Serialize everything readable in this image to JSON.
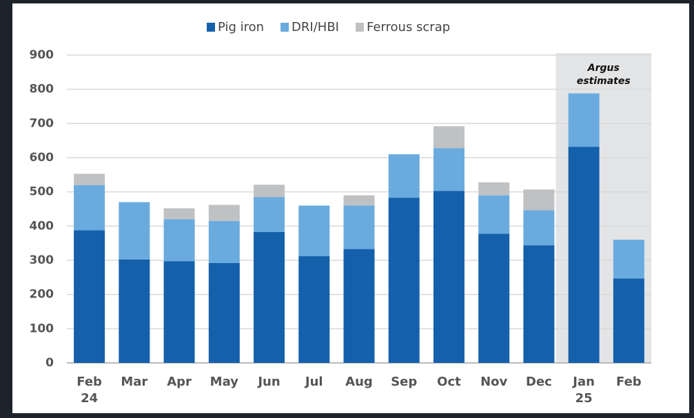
{
  "chart_data": {
    "type": "bar",
    "stacked": true,
    "categories": [
      "Feb 24",
      "Mar",
      "Apr",
      "May",
      "Jun",
      "Jul",
      "Aug",
      "Sep",
      "Oct",
      "Nov",
      "Dec",
      "Jan 25",
      "Feb"
    ],
    "series": [
      {
        "name": "Pig iron",
        "color": "#1560ab",
        "values": [
          388,
          302,
          297,
          292,
          383,
          312,
          333,
          483,
          503,
          378,
          344,
          632,
          247
        ]
      },
      {
        "name": "DRI/HBI",
        "color": "#6aabdf",
        "values": [
          132,
          168,
          123,
          123,
          102,
          148,
          127,
          127,
          125,
          112,
          102,
          156,
          113
        ]
      },
      {
        "name": "Ferrous scrap",
        "color": "#bfc1c3",
        "values": [
          33,
          0,
          32,
          47,
          36,
          0,
          30,
          0,
          64,
          38,
          61,
          0,
          0
        ]
      }
    ],
    "ylim": [
      0,
      900
    ],
    "yticks": [
      0,
      100,
      200,
      300,
      400,
      500,
      600,
      700,
      800,
      900
    ],
    "grid": true,
    "highlight": {
      "from": 11,
      "label": [
        "Argus",
        "estimates"
      ]
    }
  }
}
